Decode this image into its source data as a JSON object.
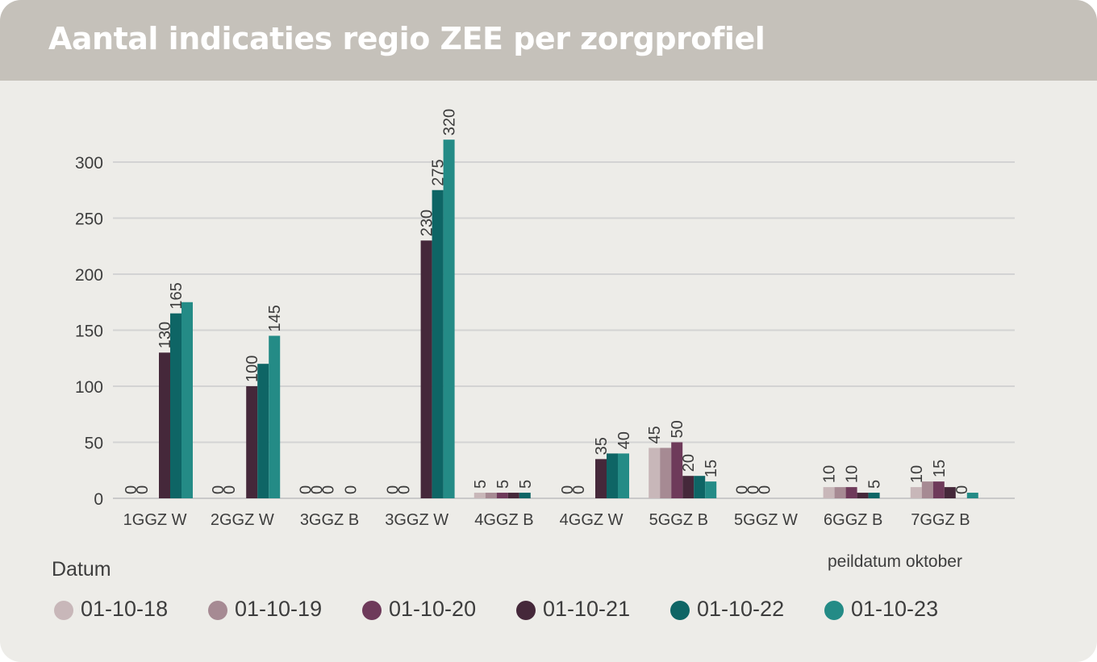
{
  "title": "Aantal indicaties regio ZEE per zorgprofiel",
  "note": "peildatum oktober",
  "legend_title": "Datum",
  "chart_data": {
    "type": "bar",
    "title": "Aantal indicaties regio ZEE per zorgprofiel",
    "xlabel": "",
    "ylabel": "",
    "ylim": [
      0,
      320
    ],
    "yticks": [
      0,
      50,
      100,
      150,
      200,
      250,
      300
    ],
    "grid": true,
    "legend_position": "bottom",
    "categories": [
      "1GGZ W",
      "2GGZ W",
      "3GGZ B",
      "3GGZ W",
      "4GGZ B",
      "4GGZ W",
      "5GGZ B",
      "5GGZ W",
      "6GGZ B",
      "7GGZ B"
    ],
    "series": [
      {
        "name": "01-10-18",
        "color": "#c8b7b9",
        "values": [
          0,
          0,
          0,
          0,
          5,
          0,
          45,
          0,
          10,
          10
        ],
        "labels": [
          "0",
          "0",
          "0",
          "0",
          "5",
          "0",
          "45",
          "0",
          "10",
          "10"
        ]
      },
      {
        "name": "01-10-19",
        "color": "#a68a93",
        "values": [
          0,
          0,
          0,
          0,
          5,
          0,
          45,
          0,
          10,
          15
        ],
        "labels": [
          "0",
          "0",
          "0",
          "0",
          "",
          "0",
          "",
          "0",
          "",
          ""
        ]
      },
      {
        "name": "01-10-20",
        "color": "#6e3a5a",
        "values": [
          0,
          0,
          0,
          0,
          5,
          0,
          50,
          0,
          10,
          15
        ],
        "labels": [
          "",
          "",
          "0",
          "",
          "5",
          "",
          "50",
          "0",
          "10",
          "15"
        ]
      },
      {
        "name": "01-10-21",
        "color": "#45283a",
        "values": [
          130,
          100,
          0,
          230,
          5,
          35,
          20,
          0,
          5,
          10
        ],
        "labels": [
          "130",
          "100",
          "",
          "230",
          "",
          "35",
          "20",
          "",
          "",
          ""
        ]
      },
      {
        "name": "01-10-22",
        "color": "#0e6565",
        "values": [
          165,
          120,
          0,
          275,
          5,
          40,
          20,
          0,
          5,
          0
        ],
        "labels": [
          "165",
          "",
          "0",
          "275",
          "5",
          "",
          "",
          "",
          "5",
          "0"
        ]
      },
      {
        "name": "01-10-23",
        "color": "#248b86",
        "values": [
          175,
          145,
          0,
          320,
          0,
          40,
          15,
          0,
          0,
          5
        ],
        "labels": [
          "",
          "145",
          "",
          "320",
          "",
          "40",
          "15",
          "",
          "",
          ""
        ]
      }
    ]
  }
}
